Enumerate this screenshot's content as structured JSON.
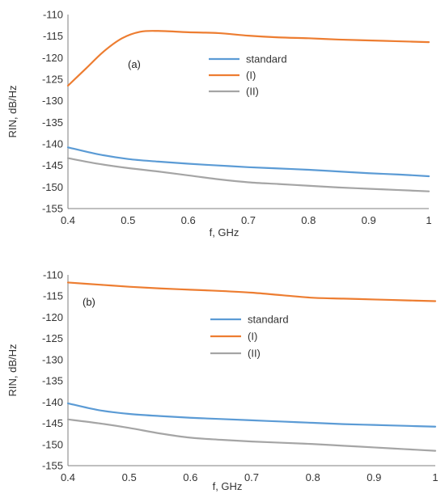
{
  "chart_data": [
    {
      "type": "line",
      "panel_label": "(a)",
      "xlabel": "f, GHz",
      "ylabel": "RIN, dB/Hz",
      "xlim": [
        0.4,
        1
      ],
      "ylim": [
        -155,
        -110
      ],
      "x_ticks": [
        "0.4",
        "0.5",
        "0.6",
        "0.7",
        "0.8",
        "0.9",
        "1"
      ],
      "y_ticks": [
        "-110",
        "-115",
        "-120",
        "-125",
        "-130",
        "-135",
        "-140",
        "-145",
        "-150",
        "-155"
      ],
      "grid": false,
      "legend_position": "upper-middle",
      "series": [
        {
          "name": "standard",
          "color": "#5b9bd5",
          "x": [
            0.4,
            0.45,
            0.5,
            0.55,
            0.6,
            0.65,
            0.7,
            0.75,
            0.8,
            0.85,
            0.9,
            0.95,
            1.0
          ],
          "y": [
            -140.8,
            -142.4,
            -143.5,
            -144.1,
            -144.6,
            -145.0,
            -145.4,
            -145.7,
            -146.0,
            -146.4,
            -146.8,
            -147.1,
            -147.5
          ]
        },
        {
          "name": "(I)",
          "color": "#ed7d31",
          "x": [
            0.4,
            0.43,
            0.46,
            0.49,
            0.52,
            0.55,
            0.6,
            0.65,
            0.7,
            0.75,
            0.8,
            0.85,
            0.9,
            0.95,
            1.0
          ],
          "y": [
            -126.5,
            -122.5,
            -118.5,
            -115.5,
            -114.0,
            -113.8,
            -114.1,
            -114.3,
            -114.9,
            -115.3,
            -115.5,
            -115.8,
            -116.0,
            -116.2,
            -116.4
          ]
        },
        {
          "name": "(II)",
          "color": "#a5a5a5",
          "x": [
            0.4,
            0.45,
            0.5,
            0.55,
            0.6,
            0.65,
            0.7,
            0.75,
            0.8,
            0.85,
            0.9,
            0.95,
            1.0
          ],
          "y": [
            -143.3,
            -144.6,
            -145.6,
            -146.4,
            -147.3,
            -148.2,
            -148.9,
            -149.3,
            -149.7,
            -150.1,
            -150.4,
            -150.7,
            -151.0
          ]
        }
      ]
    },
    {
      "type": "line",
      "panel_label": "(b)",
      "xlabel": "f, GHz",
      "ylabel": "RIN, dB/Hz",
      "xlim": [
        0.4,
        1
      ],
      "ylim": [
        -155,
        -110
      ],
      "x_ticks": [
        "0.4",
        "0.5",
        "0.6",
        "0.7",
        "0.8",
        "0.9",
        "1"
      ],
      "y_ticks": [
        "-110",
        "-115",
        "-120",
        "-125",
        "-130",
        "-135",
        "-140",
        "-145",
        "-150",
        "-155"
      ],
      "grid": false,
      "legend_position": "upper-middle",
      "series": [
        {
          "name": "standard",
          "color": "#5b9bd5",
          "x": [
            0.4,
            0.45,
            0.5,
            0.55,
            0.6,
            0.65,
            0.7,
            0.75,
            0.8,
            0.85,
            0.9,
            0.95,
            1.0
          ],
          "y": [
            -140.3,
            -141.9,
            -142.8,
            -143.3,
            -143.7,
            -144.0,
            -144.3,
            -144.6,
            -144.9,
            -145.2,
            -145.4,
            -145.6,
            -145.8
          ]
        },
        {
          "name": "(I)",
          "color": "#ed7d31",
          "x": [
            0.4,
            0.45,
            0.5,
            0.55,
            0.6,
            0.65,
            0.7,
            0.75,
            0.8,
            0.85,
            0.9,
            0.95,
            1.0
          ],
          "y": [
            -111.8,
            -112.3,
            -112.8,
            -113.2,
            -113.5,
            -113.8,
            -114.2,
            -114.8,
            -115.4,
            -115.6,
            -115.8,
            -116.0,
            -116.2
          ]
        },
        {
          "name": "(II)",
          "color": "#a5a5a5",
          "x": [
            0.4,
            0.45,
            0.5,
            0.55,
            0.6,
            0.65,
            0.7,
            0.75,
            0.8,
            0.85,
            0.9,
            0.95,
            1.0
          ],
          "y": [
            -144.1,
            -145.0,
            -146.1,
            -147.4,
            -148.4,
            -148.9,
            -149.3,
            -149.6,
            -149.9,
            -150.3,
            -150.7,
            -151.1,
            -151.5
          ]
        }
      ]
    }
  ]
}
